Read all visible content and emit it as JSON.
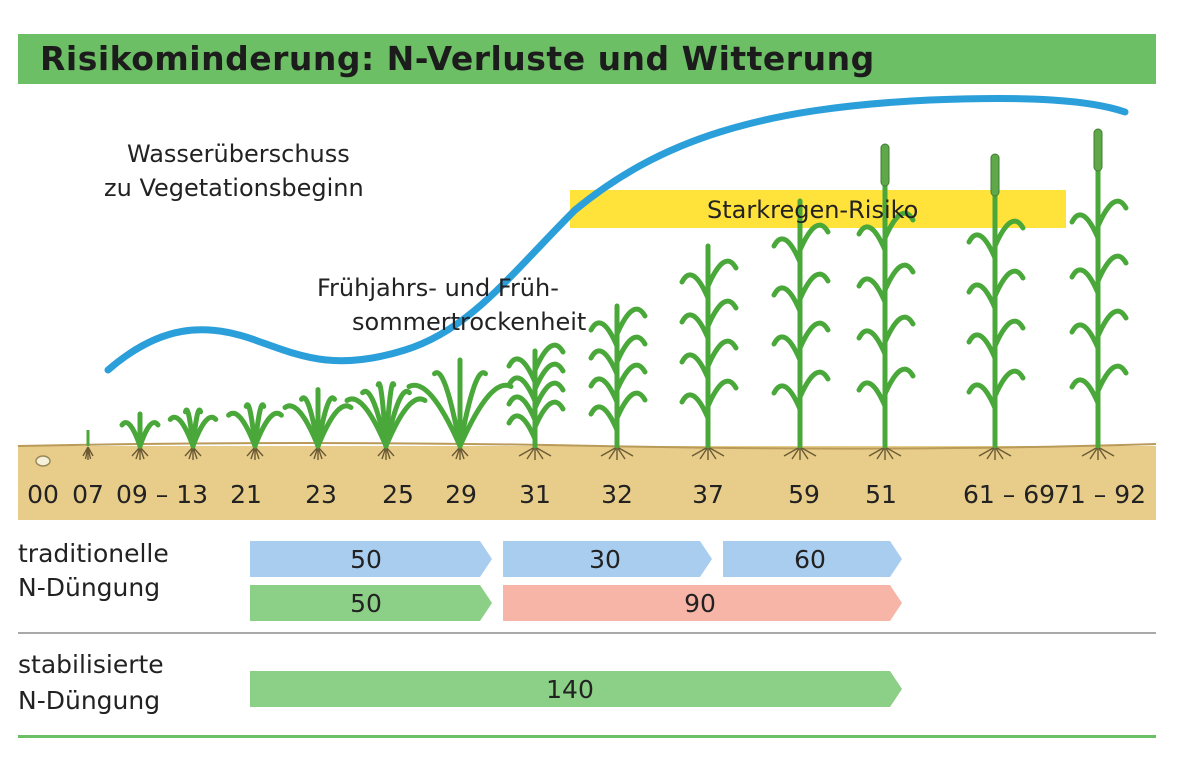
{
  "title": "Risikominderung: N-Verluste und Witterung",
  "annotations": {
    "water_surplus_line1": "Wasserüberschuss",
    "water_surplus_line2": "zu Vegetationsbeginn",
    "drought_line1": "Frühjahrs- und Früh-",
    "drought_line2": "sommertrockenheit",
    "heavy_rain": "Starkregen-Risiko"
  },
  "growth_stages": [
    "00",
    "07",
    "09 – 13",
    "21",
    "23",
    "25",
    "29",
    "31",
    "32",
    "37",
    "59",
    "51",
    "61 – 69",
    "71 – 92"
  ],
  "rows": {
    "traditional_label_line1": "traditionelle",
    "traditional_label_line2": "N-Düngung",
    "stabilized_label_line1": "stabilisierte",
    "stabilized_label_line2": "N-Düngung"
  },
  "applications": {
    "traditional_blue": [
      "50",
      "30",
      "60"
    ],
    "traditional_green": "50",
    "traditional_red": "90",
    "stabilized_green": "140"
  },
  "colors": {
    "title_bar": "#6cbf64",
    "water_curve": "#2b9fd9",
    "heavy_rain_band": "#ffe23a",
    "soil": "#e8cd8a",
    "plant": "#4aa83a",
    "arrow_blue": "#a9cdee",
    "arrow_green": "#8ccf86",
    "arrow_red": "#f6b5a6"
  }
}
